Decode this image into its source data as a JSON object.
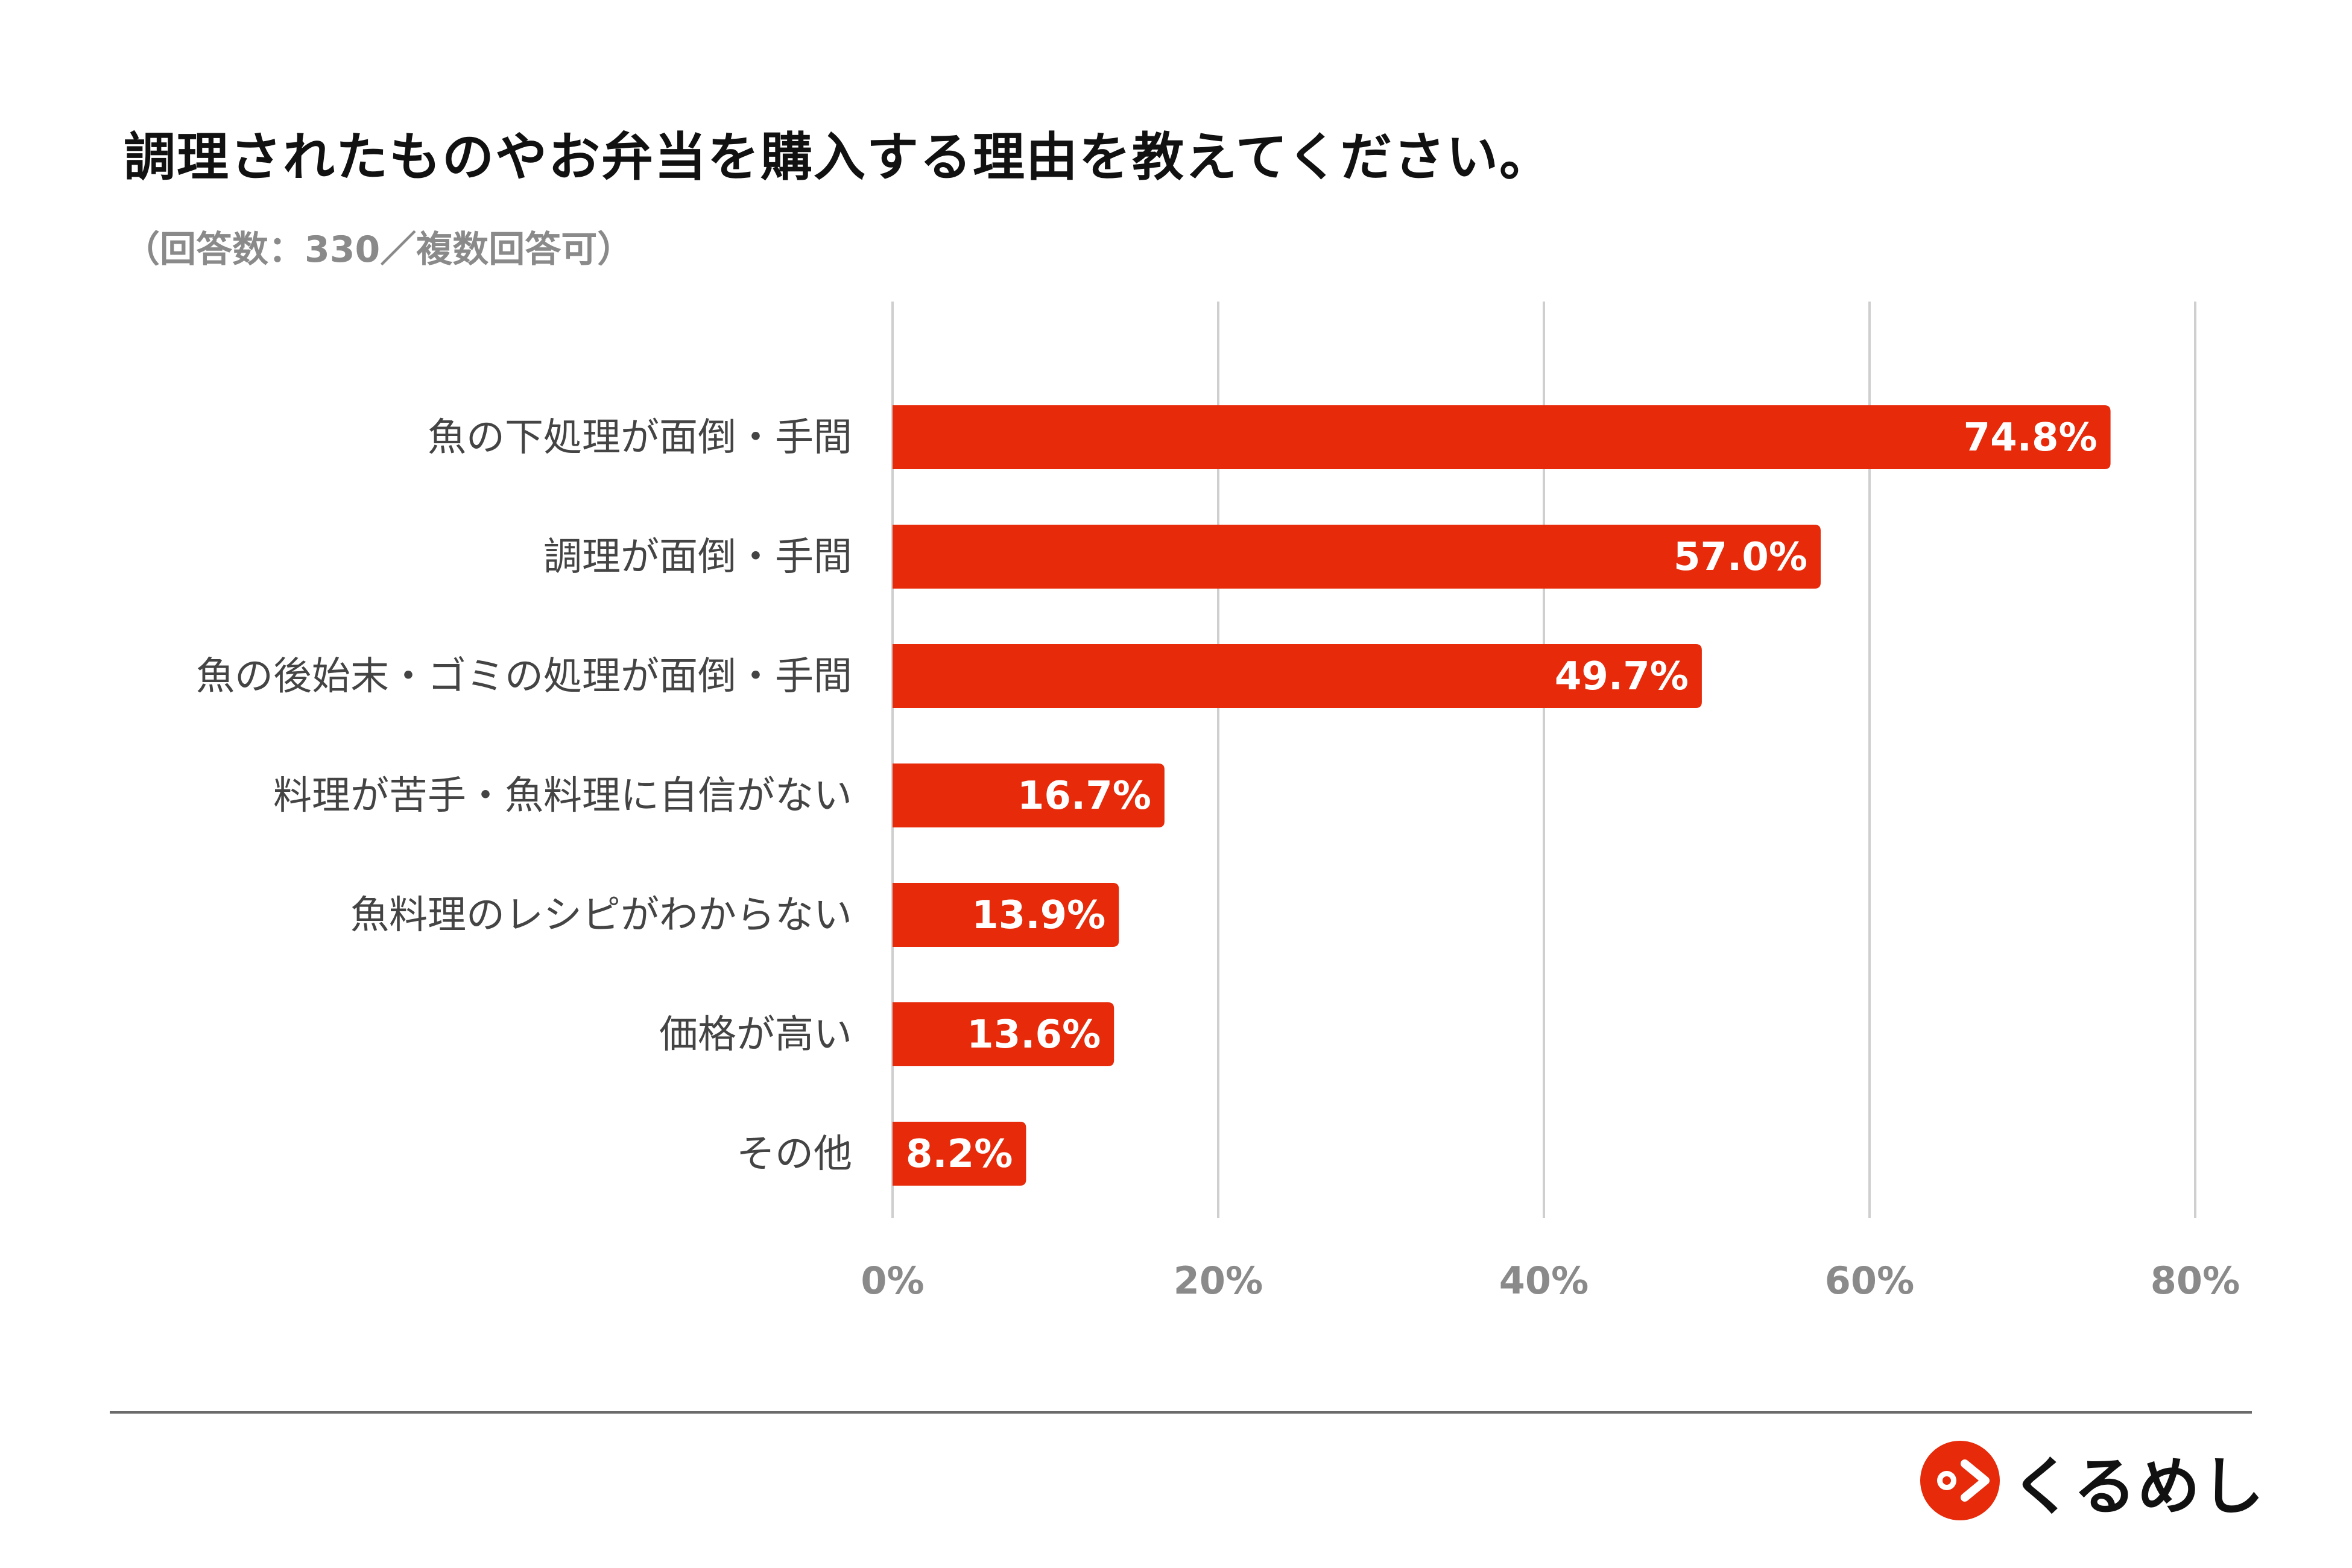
{
  "title": "調理されたものやお弁当を購入する理由を教えてください。",
  "subtitle": "（回答数：330／複数回答可）",
  "colors": {
    "bar": "#E62A0A",
    "grid": "#CFCFCF",
    "tick_label": "#8A8A8A",
    "category_label": "#444444",
    "value_label": "#FFFFFF",
    "logo": "#E62A0A"
  },
  "chart_data": {
    "type": "bar",
    "orientation": "horizontal",
    "categories": [
      "魚の下処理が面倒・手間",
      "調理が面倒・手間",
      "魚の後始末・ゴミの処理が面倒・手間",
      "料理が苦手・魚料理に自信がない",
      "魚料理のレシピがわからない",
      "価格が高い",
      "その他"
    ],
    "values": [
      74.8,
      57.0,
      49.7,
      16.7,
      13.9,
      13.6,
      8.2
    ],
    "value_labels": [
      "74.8%",
      "57.0%",
      "49.7%",
      "16.7%",
      "13.9%",
      "13.6%",
      "8.2%"
    ],
    "xlim": [
      0,
      80
    ],
    "x_ticks": [
      0,
      20,
      40,
      60,
      80
    ],
    "x_tick_labels": [
      "0%",
      "20%",
      "40%",
      "60%",
      "80%"
    ],
    "grid": true,
    "legend": "none"
  },
  "logo": {
    "text": "くるめし",
    "icon": "kurumeshi-logo-icon"
  }
}
